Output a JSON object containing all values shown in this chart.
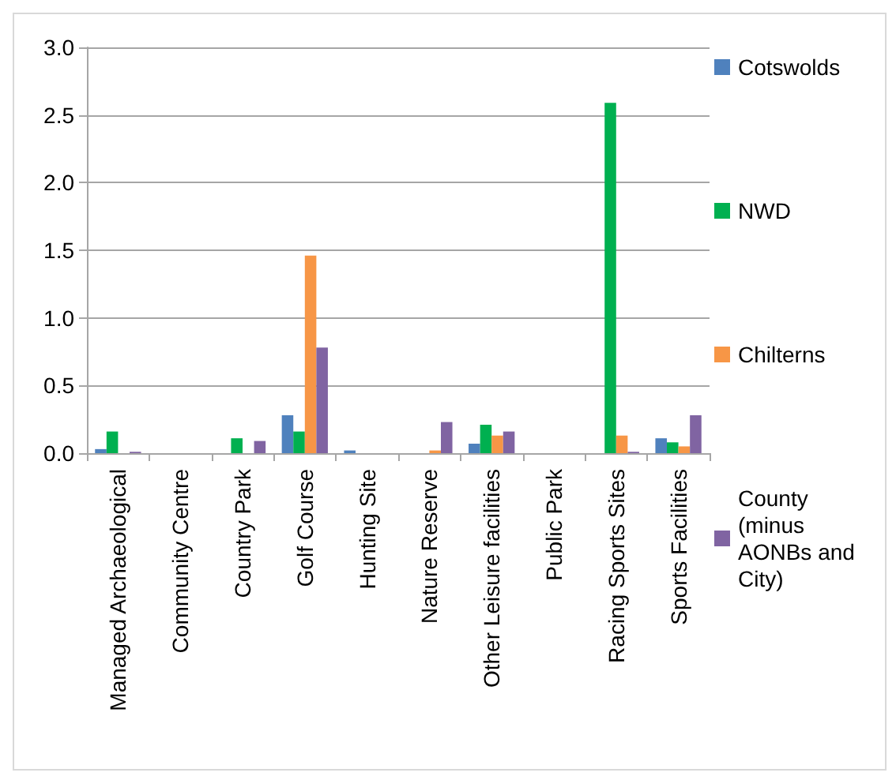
{
  "chart_data": {
    "type": "bar",
    "categories": [
      "Managed Archaeological",
      "Community Centre",
      "Country Park",
      "Golf Course",
      "Hunting Site",
      "Nature Reserve",
      "Other Leisure facilities",
      "Public Park",
      "Racing Sports Sites",
      "Sports Facilities"
    ],
    "series": [
      {
        "name": "Cotswolds",
        "color": "#4f81bd",
        "values": [
          0.03,
          0,
          0,
          0.28,
          0.02,
          0,
          0.07,
          0,
          0,
          0.11
        ]
      },
      {
        "name": "NWD",
        "color": "#00b050",
        "values": [
          0.16,
          0,
          0.11,
          0.16,
          0,
          0,
          0.21,
          0,
          2.59,
          0.08
        ]
      },
      {
        "name": "Chilterns",
        "color": "#f79646",
        "values": [
          0,
          0,
          0,
          1.46,
          0,
          0.02,
          0.13,
          0,
          0.13,
          0.05
        ]
      },
      {
        "name": "County (minus AONBs and City)",
        "color": "#8064a2",
        "values": [
          0.01,
          0,
          0.09,
          0.78,
          0,
          0.23,
          0.16,
          0,
          0.01,
          0.28
        ]
      }
    ],
    "ylim": [
      0,
      3
    ],
    "yticks": [
      {
        "value": 0,
        "label": "0.0"
      },
      {
        "value": 0.5,
        "label": "0.5"
      },
      {
        "value": 1,
        "label": "1.0"
      },
      {
        "value": 1.5,
        "label": "1.5"
      },
      {
        "value": 2,
        "label": "2.0"
      },
      {
        "value": 2.5,
        "label": "2.5"
      },
      {
        "value": 3,
        "label": "3.0"
      }
    ],
    "grid": "y",
    "legend": "right"
  }
}
